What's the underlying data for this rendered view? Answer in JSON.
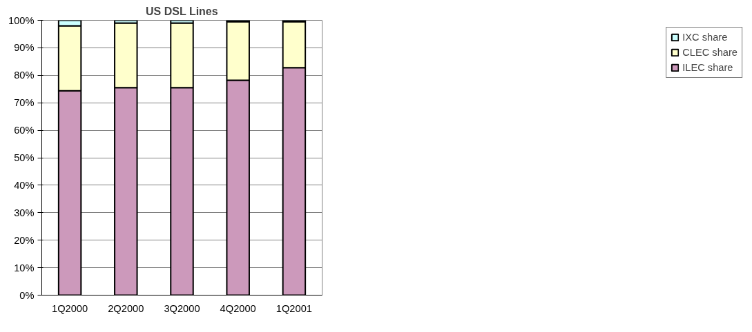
{
  "chart_data": {
    "type": "bar",
    "title": "US DSL Lines",
    "stacked": true,
    "categories": [
      "1Q2000",
      "2Q2000",
      "3Q2000",
      "4Q2000",
      "1Q2001"
    ],
    "series": [
      {
        "name": "ILEC share",
        "color": "#cc99bb",
        "values": [
          74.4,
          75.5,
          75.5,
          78.2,
          82.8
        ]
      },
      {
        "name": "CLEC share",
        "color": "#ffffcc",
        "values": [
          23.6,
          23.5,
          23.5,
          21.3,
          16.7
        ]
      },
      {
        "name": "IXC share",
        "color": "#ccffff",
        "values": [
          2.0,
          1.0,
          1.0,
          0.5,
          0.5
        ]
      }
    ],
    "ylim": [
      0,
      100
    ],
    "yticks": [
      {
        "value": 0,
        "label": "0%"
      },
      {
        "value": 10,
        "label": "10%"
      },
      {
        "value": 20,
        "label": "20%"
      },
      {
        "value": 30,
        "label": "30%"
      },
      {
        "value": 40,
        "label": "40%"
      },
      {
        "value": 50,
        "label": "50%"
      },
      {
        "value": 60,
        "label": "60%"
      },
      {
        "value": 70,
        "label": "70%"
      },
      {
        "value": 80,
        "label": "80%"
      },
      {
        "value": 90,
        "label": "90%"
      },
      {
        "value": 100,
        "label": "100%"
      }
    ],
    "grid": "y",
    "legend": "right"
  }
}
